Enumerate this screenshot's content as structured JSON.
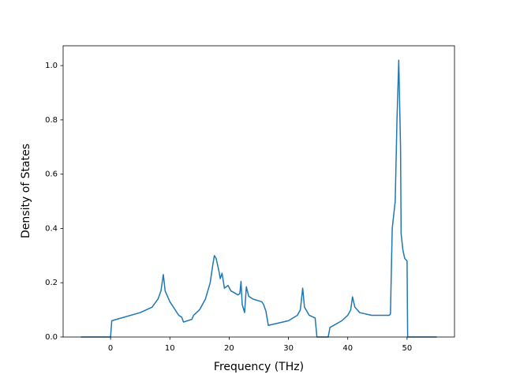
{
  "chart_data": {
    "type": "line",
    "xlabel": "Frequency (THz)",
    "ylabel": "Density of States",
    "color": "#1f77b4",
    "x": [
      -5,
      0,
      0.2,
      1,
      5,
      7,
      8,
      8.5,
      8.9,
      9.2,
      10,
      11.5,
      12,
      12.3,
      13.7,
      14,
      15,
      16,
      16.8,
      17.2,
      17.5,
      17.8,
      18.3,
      18.5,
      18.8,
      19.2,
      19.8,
      20.3,
      21.5,
      21.8,
      22,
      22.2,
      22.6,
      22.9,
      23.3,
      24,
      25.5,
      25.8,
      26.2,
      26.6,
      30,
      31.5,
      32,
      32.4,
      32.7,
      33.5,
      34.5,
      34.8,
      36.7,
      37,
      39,
      40,
      40.5,
      40.8,
      41.2,
      42,
      44,
      47,
      47.2,
      47.5,
      48,
      48.3,
      48.6,
      48.9,
      49,
      49.3,
      49.6,
      50,
      50.1,
      55
    ],
    "values": [
      0,
      0,
      0.06,
      0.065,
      0.09,
      0.11,
      0.14,
      0.17,
      0.23,
      0.17,
      0.13,
      0.08,
      0.073,
      0.055,
      0.065,
      0.08,
      0.1,
      0.14,
      0.2,
      0.26,
      0.3,
      0.29,
      0.24,
      0.215,
      0.235,
      0.18,
      0.19,
      0.17,
      0.155,
      0.16,
      0.205,
      0.12,
      0.09,
      0.185,
      0.15,
      0.14,
      0.13,
      0.12,
      0.095,
      0.043,
      0.06,
      0.08,
      0.1,
      0.18,
      0.11,
      0.08,
      0.07,
      0,
      0,
      0.035,
      0.06,
      0.08,
      0.1,
      0.148,
      0.11,
      0.09,
      0.08,
      0.08,
      0.085,
      0.4,
      0.5,
      0.8,
      1.02,
      0.7,
      0.38,
      0.32,
      0.29,
      0.28,
      0,
      0
    ],
    "xlim": [
      -8,
      58
    ],
    "xticks": [
      0,
      10,
      20,
      30,
      40,
      50
    ],
    "ylim": [
      0,
      1.073
    ],
    "yticks": [
      {
        "value": 0,
        "label": "0.0"
      },
      {
        "value": 0.2,
        "label": "0.2"
      },
      {
        "value": 0.4,
        "label": "0.4"
      },
      {
        "value": 0.6,
        "label": "0.6"
      },
      {
        "value": 0.8,
        "label": "0.8"
      },
      {
        "value": 1.0,
        "label": "1.0"
      }
    ]
  }
}
